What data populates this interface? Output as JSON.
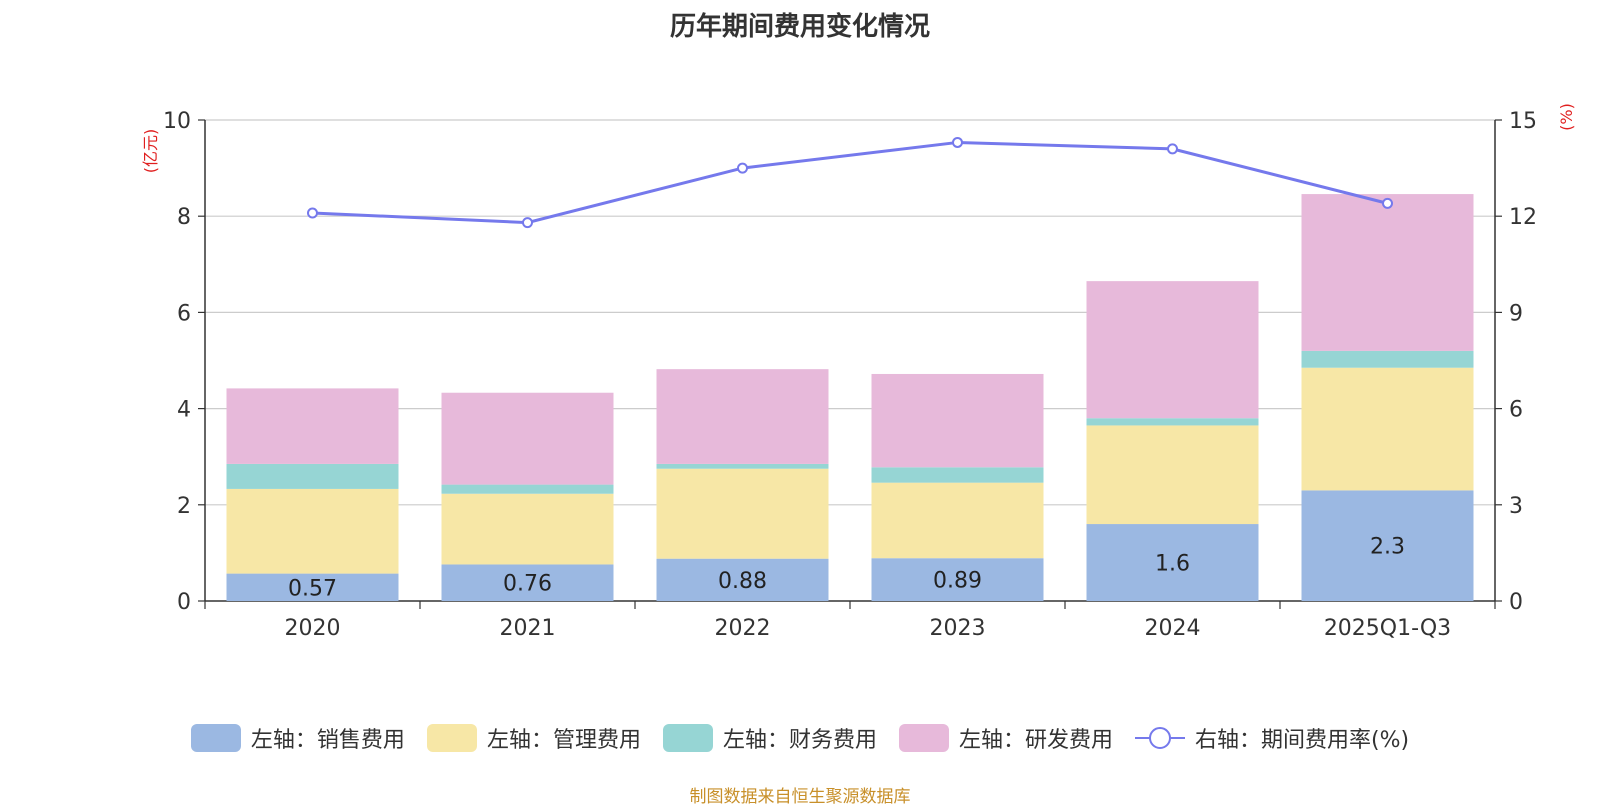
{
  "chart_data": {
    "type": "bar",
    "title": "历年期间费用变化情况",
    "categories": [
      "2020",
      "2021",
      "2022",
      "2023",
      "2024",
      "2025Q1-Q3"
    ],
    "left_axis": {
      "unit_label": "(亿元)",
      "ylim": [
        0,
        10
      ],
      "ticks": [
        "0",
        "2",
        "4",
        "6",
        "8",
        "10"
      ]
    },
    "right_axis": {
      "unit_label": "(%)",
      "ylim": [
        0,
        15
      ],
      "ticks": [
        "0",
        "3",
        "6",
        "9",
        "12",
        "15"
      ]
    },
    "grid": true,
    "stacked_series": [
      {
        "name": "左轴：销售费用",
        "color": "#9bb8e2",
        "values": [
          0.57,
          0.76,
          0.88,
          0.89,
          1.6,
          2.3
        ],
        "labels": [
          "0.57",
          "0.76",
          "0.88",
          "0.89",
          "1.6",
          "2.3"
        ]
      },
      {
        "name": "左轴：管理费用",
        "color": "#f7e7a6",
        "values": [
          1.76,
          1.47,
          1.87,
          1.57,
          2.05,
          2.55
        ],
        "labels": []
      },
      {
        "name": "左轴：财务费用",
        "color": "#96d5d4",
        "values": [
          0.52,
          0.19,
          0.1,
          0.32,
          0.15,
          0.35
        ],
        "labels": []
      },
      {
        "name": "左轴：研发费用",
        "color": "#e7b9da",
        "values": [
          1.57,
          1.91,
          1.97,
          1.94,
          2.85,
          3.26
        ],
        "labels": []
      }
    ],
    "line_series": {
      "name": "右轴：期间费用率(%)",
      "color": "#7579ec",
      "axis": "right",
      "values": [
        12.1,
        11.8,
        13.5,
        14.3,
        14.1,
        12.4
      ]
    },
    "legend_position": "bottom"
  },
  "source": "制图数据来自恒生聚源数据库"
}
